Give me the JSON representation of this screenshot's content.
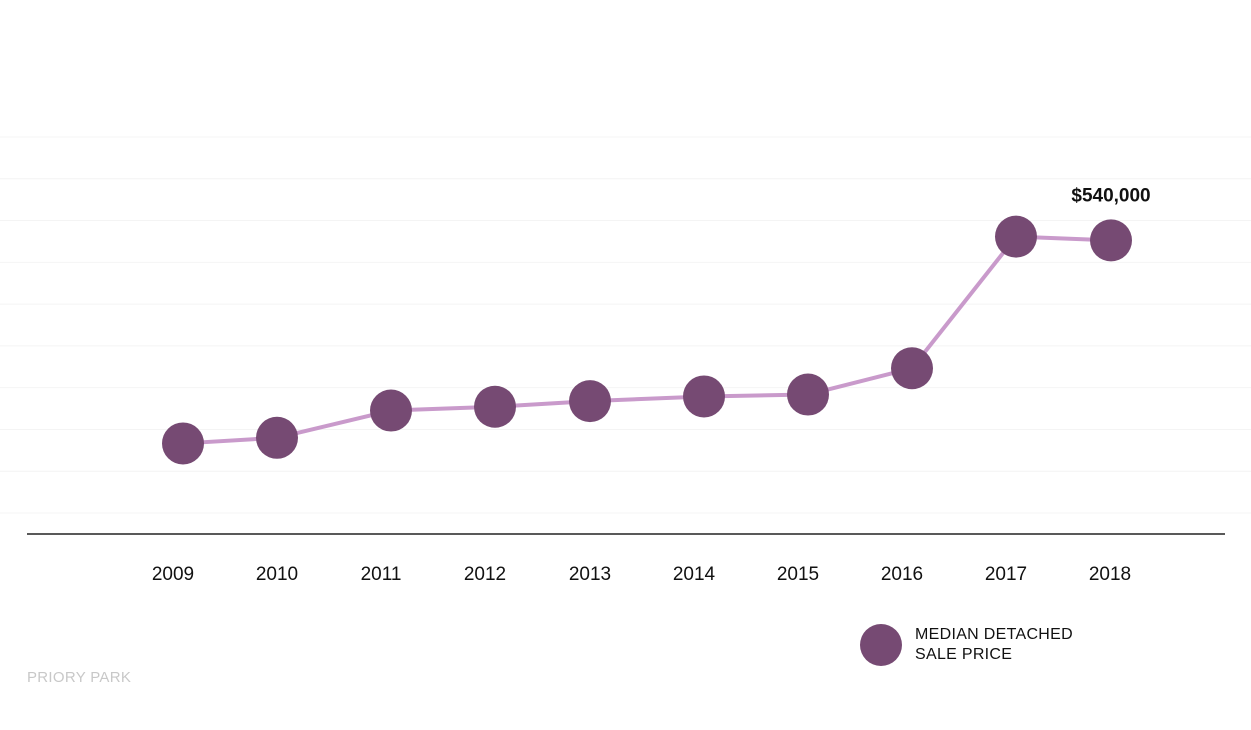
{
  "chart_data": {
    "type": "line",
    "categories": [
      "2009",
      "2010",
      "2011",
      "2012",
      "2013",
      "2014",
      "2015",
      "2016",
      "2017",
      "2018"
    ],
    "series": [
      {
        "name": "MEDIAN DETACHED SALE PRICE",
        "values": [
          324000,
          330000,
          359000,
          363000,
          369000,
          374000,
          376000,
          404000,
          544000,
          540000
        ]
      }
    ],
    "data_labels": [
      {
        "index": 9,
        "text": "$540,000"
      }
    ],
    "ylim": [
      250000,
      650000
    ],
    "grid": true,
    "legend": "bottom-right",
    "colors": {
      "line": "#c99acb",
      "marker": "#764a73",
      "axis": "#222222",
      "grid": "#f4f4f4"
    }
  },
  "legend": {
    "line1": "MEDIAN DETACHED",
    "line2": "SALE PRICE"
  },
  "source_label": "PRIORY PARK"
}
